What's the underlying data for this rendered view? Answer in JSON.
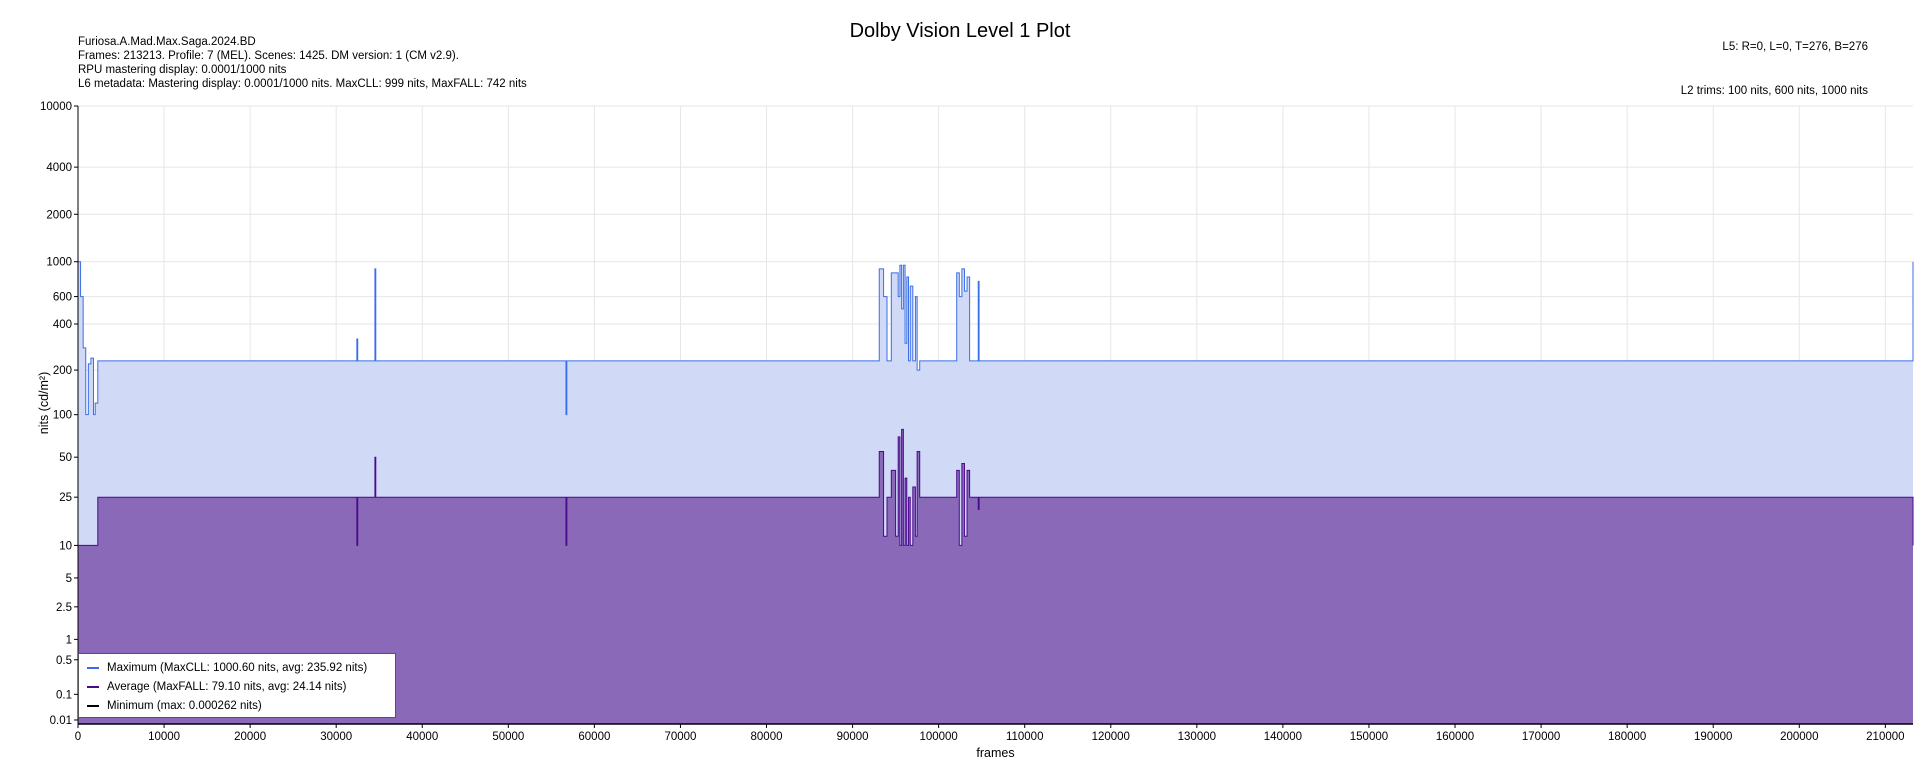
{
  "header": {
    "title": "Dolby Vision Level 1 Plot",
    "info_left": [
      "Furiosa.A.Mad.Max.Saga.2024.BD",
      "Frames: 213213. Profile: 7 (MEL). Scenes: 1425. DM version: 1 (CM v2.9).",
      "RPU mastering display: 0.0001/1000 nits",
      "L6 metadata: Mastering display: 0.0001/1000 nits. MaxCLL: 999 nits, MaxFALL: 742 nits"
    ],
    "info_right_top": "L5: R=0, L=0, T=276, B=276",
    "info_right_bottom": "L2 trims: 100 nits, 600 nits, 1000 nits"
  },
  "colors": {
    "max_line": "#3a6ee8",
    "max_fill": "#d0daf6",
    "avg_line": "#4b0a8c",
    "avg_fill": "#8a6ab8",
    "min_line": "#000000",
    "grid": "#e6e6e6"
  },
  "chart_data": {
    "type": "area",
    "title": "Dolby Vision Level 1 Plot",
    "xlabel": "frames",
    "ylabel": "nits (cd/m²)",
    "xlim": [
      0,
      213213
    ],
    "ylim": [
      0.005,
      10000
    ],
    "yscale": "pq",
    "grid": true,
    "legend_position": "bottom-left",
    "x_ticks": [
      0,
      10000,
      20000,
      30000,
      40000,
      50000,
      60000,
      70000,
      80000,
      90000,
      100000,
      110000,
      120000,
      130000,
      140000,
      150000,
      160000,
      170000,
      180000,
      190000,
      200000,
      210000
    ],
    "y_ticks": [
      {
        "label": "10000",
        "value": 10000
      },
      {
        "label": "4000",
        "value": 4000
      },
      {
        "label": "2000",
        "value": 2000
      },
      {
        "label": "1000",
        "value": 1000
      },
      {
        "label": "600",
        "value": 600
      },
      {
        "label": "400",
        "value": 400
      },
      {
        "label": "200",
        "value": 200
      },
      {
        "label": "100",
        "value": 100
      },
      {
        "label": "50",
        "value": 50
      },
      {
        "label": "25",
        "value": 25
      },
      {
        "label": "10",
        "value": 10
      },
      {
        "label": "5",
        "value": 5
      },
      {
        "label": "2.5",
        "value": 2.5
      },
      {
        "label": "1",
        "value": 1
      },
      {
        "label": "0.5",
        "value": 0.5
      },
      {
        "label": "0.1",
        "value": 0.1
      },
      {
        "label": "0.01",
        "value": 0.01
      }
    ],
    "series": [
      {
        "name": "Maximum (MaxCLL: 1000.60 nits, avg: 235.92 nits)",
        "points": [
          [
            0,
            1000
          ],
          [
            300,
            600
          ],
          [
            600,
            280
          ],
          [
            900,
            100
          ],
          [
            1200,
            220
          ],
          [
            1500,
            240
          ],
          [
            1800,
            100
          ],
          [
            2000,
            120
          ],
          [
            2300,
            230
          ],
          [
            32300,
            230
          ],
          [
            32400,
            320
          ],
          [
            32500,
            230
          ],
          [
            34400,
            230
          ],
          [
            34500,
            900
          ],
          [
            34600,
            230
          ],
          [
            56600,
            230
          ],
          [
            56700,
            100
          ],
          [
            56800,
            230
          ],
          [
            93000,
            230
          ],
          [
            93100,
            900
          ],
          [
            93500,
            900
          ],
          [
            93600,
            600
          ],
          [
            94000,
            230
          ],
          [
            94400,
            230
          ],
          [
            94500,
            850
          ],
          [
            95200,
            850
          ],
          [
            95300,
            600
          ],
          [
            95500,
            950
          ],
          [
            95700,
            500
          ],
          [
            95900,
            950
          ],
          [
            96100,
            300
          ],
          [
            96300,
            800
          ],
          [
            96500,
            230
          ],
          [
            96700,
            700
          ],
          [
            97000,
            230
          ],
          [
            97300,
            600
          ],
          [
            97500,
            200
          ],
          [
            97800,
            230
          ],
          [
            102000,
            230
          ],
          [
            102100,
            850
          ],
          [
            102400,
            600
          ],
          [
            102700,
            900
          ],
          [
            103000,
            650
          ],
          [
            103300,
            800
          ],
          [
            103600,
            230
          ],
          [
            104500,
            230
          ],
          [
            104600,
            750
          ],
          [
            104700,
            230
          ],
          [
            213000,
            230
          ],
          [
            213213,
            1000
          ]
        ]
      },
      {
        "name": "Average (MaxFALL: 79.10 nits, avg: 24.14 nits)",
        "points": [
          [
            0,
            10
          ],
          [
            2200,
            10
          ],
          [
            2300,
            25
          ],
          [
            32300,
            25
          ],
          [
            32400,
            10
          ],
          [
            32500,
            25
          ],
          [
            34400,
            25
          ],
          [
            34500,
            50
          ],
          [
            34600,
            25
          ],
          [
            56600,
            25
          ],
          [
            56700,
            10
          ],
          [
            56800,
            25
          ],
          [
            93000,
            25
          ],
          [
            93100,
            55
          ],
          [
            93500,
            55
          ],
          [
            93600,
            12
          ],
          [
            94000,
            25
          ],
          [
            94400,
            25
          ],
          [
            94500,
            40
          ],
          [
            95000,
            12
          ],
          [
            95300,
            70
          ],
          [
            95500,
            10
          ],
          [
            95700,
            79
          ],
          [
            95900,
            10
          ],
          [
            96100,
            35
          ],
          [
            96300,
            10
          ],
          [
            96500,
            25
          ],
          [
            96700,
            10
          ],
          [
            97000,
            30
          ],
          [
            97300,
            12
          ],
          [
            97500,
            55
          ],
          [
            97800,
            25
          ],
          [
            102000,
            25
          ],
          [
            102100,
            40
          ],
          [
            102400,
            10
          ],
          [
            102700,
            45
          ],
          [
            103000,
            12
          ],
          [
            103300,
            40
          ],
          [
            103600,
            25
          ],
          [
            104500,
            25
          ],
          [
            104600,
            20
          ],
          [
            104700,
            25
          ],
          [
            213000,
            25
          ],
          [
            213213,
            10
          ]
        ]
      },
      {
        "name": "Minimum (max: 0.000262 nits)",
        "points": [
          [
            0,
            0.0001
          ],
          [
            213213,
            0.0001
          ]
        ]
      }
    ]
  }
}
